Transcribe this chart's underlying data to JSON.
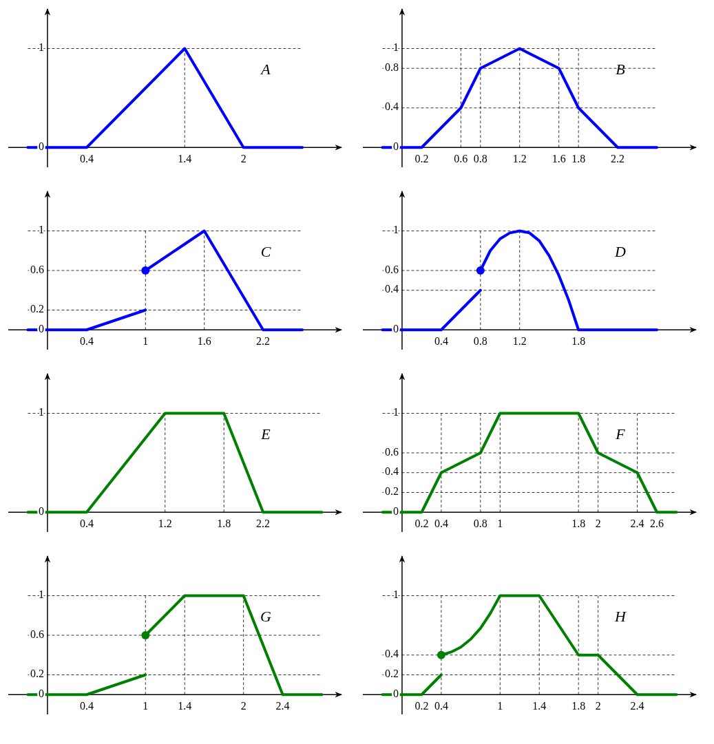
{
  "chart_data": [
    {
      "type": "line",
      "xlim": [
        -0.4,
        3.0
      ],
      "ylim": [
        -0.2,
        1.4
      ],
      "xticks": [
        0.4,
        1.4,
        2
      ],
      "yticks": [
        0,
        1
      ],
      "series": [
        {
          "color": "#0000ff",
          "x": [
            -0.2,
            0.4,
            1.4,
            2,
            2.6
          ],
          "values": [
            0,
            0,
            1,
            0,
            0
          ]
        }
      ],
      "ref_lines": [
        {
          "axis": "y",
          "value": 1,
          "line_style": "dashed"
        },
        {
          "axis": "x",
          "value": 1.4,
          "line_style": "dashed"
        }
      ],
      "annotations": [
        "A"
      ]
    },
    {
      "type": "line",
      "xlim": [
        -0.4,
        3.0
      ],
      "ylim": [
        -0.2,
        1.4
      ],
      "xticks": [
        0.2,
        0.6,
        0.8,
        1.2,
        1.6,
        1.8,
        2.2
      ],
      "yticks": [
        0,
        0.4,
        0.8,
        1
      ],
      "series": [
        {
          "color": "#0000ff",
          "x": [
            -0.2,
            0.2,
            0.6,
            0.8,
            1.2,
            1.6,
            1.8,
            2.2,
            2.6
          ],
          "values": [
            0,
            0,
            0.4,
            0.8,
            1,
            0.8,
            0.4,
            0,
            0
          ]
        }
      ],
      "ref_lines": [
        {
          "axis": "y",
          "value": 0.4,
          "line_style": "dashed"
        },
        {
          "axis": "y",
          "value": 0.8,
          "line_style": "dashed"
        },
        {
          "axis": "y",
          "value": 1,
          "line_style": "dashed"
        },
        {
          "axis": "x",
          "value": 0.6,
          "line_style": "dashed"
        },
        {
          "axis": "x",
          "value": 0.8,
          "line_style": "dashed"
        },
        {
          "axis": "x",
          "value": 1.2,
          "line_style": "dashed"
        },
        {
          "axis": "x",
          "value": 1.6,
          "line_style": "dashed"
        },
        {
          "axis": "x",
          "value": 1.8,
          "line_style": "dashed"
        }
      ],
      "annotations": [
        "B"
      ]
    },
    {
      "type": "line",
      "xlim": [
        -0.4,
        3.0
      ],
      "ylim": [
        -0.2,
        1.4
      ],
      "xticks": [
        0.4,
        1,
        1.6,
        2.2
      ],
      "yticks": [
        0,
        0.2,
        0.6,
        1
      ],
      "series": [
        {
          "color": "#0000ff",
          "x": [
            -0.2,
            0.4,
            1
          ],
          "values": [
            0,
            0,
            0.2
          ]
        },
        {
          "color": "#0000ff",
          "x": [
            1,
            1.6,
            2.2,
            2.6
          ],
          "values": [
            0.6,
            1,
            0,
            0
          ]
        },
        {
          "type": "scatter",
          "marker": "circle",
          "color": "#0000ff",
          "x": [
            1
          ],
          "values": [
            0.6
          ]
        }
      ],
      "ref_lines": [
        {
          "axis": "y",
          "value": 0.2,
          "line_style": "dashed"
        },
        {
          "axis": "y",
          "value": 0.6,
          "line_style": "dashed"
        },
        {
          "axis": "y",
          "value": 1,
          "line_style": "dashed"
        },
        {
          "axis": "x",
          "value": 1,
          "line_style": "dashed"
        },
        {
          "axis": "x",
          "value": 1.6,
          "line_style": "dashed"
        }
      ],
      "annotations": [
        "C"
      ]
    },
    {
      "type": "line",
      "xlim": [
        -0.4,
        3.0
      ],
      "ylim": [
        -0.2,
        1.4
      ],
      "xticks": [
        0.4,
        0.8,
        1.2,
        1.8
      ],
      "yticks": [
        0,
        0.4,
        0.6,
        1
      ],
      "series": [
        {
          "color": "#0000ff",
          "x": [
            -0.2,
            0.4,
            0.8
          ],
          "values": [
            0,
            0,
            0.4
          ]
        },
        {
          "color": "#0000ff",
          "x": [
            0.8,
            0.9,
            1,
            1.1,
            1.2,
            1.3,
            1.4,
            1.5,
            1.6,
            1.7,
            1.8,
            2.6
          ],
          "values": [
            0.6,
            0.8,
            0.92,
            0.98,
            1,
            0.98,
            0.9,
            0.75,
            0.55,
            0.3,
            0,
            0
          ]
        },
        {
          "type": "scatter",
          "marker": "circle",
          "color": "#0000ff",
          "x": [
            0.8
          ],
          "values": [
            0.6
          ]
        }
      ],
      "ref_lines": [
        {
          "axis": "y",
          "value": 0.4,
          "line_style": "dashed"
        },
        {
          "axis": "y",
          "value": 0.6,
          "line_style": "dashed"
        },
        {
          "axis": "y",
          "value": 1,
          "line_style": "dashed"
        },
        {
          "axis": "x",
          "value": 0.8,
          "line_style": "dashed"
        },
        {
          "axis": "x",
          "value": 1.2,
          "line_style": "dashed"
        }
      ],
      "annotations": [
        "D"
      ]
    },
    {
      "type": "line",
      "xlim": [
        -0.4,
        3.0
      ],
      "ylim": [
        -0.2,
        1.4
      ],
      "xticks": [
        0.4,
        1.2,
        1.8,
        2.2
      ],
      "yticks": [
        0,
        1
      ],
      "series": [
        {
          "color": "#008000",
          "x": [
            -0.2,
            0.4,
            1.2,
            1.8,
            2.2,
            2.8
          ],
          "values": [
            0,
            0,
            1,
            1,
            0,
            0
          ]
        }
      ],
      "ref_lines": [
        {
          "axis": "y",
          "value": 1,
          "line_style": "dashed"
        },
        {
          "axis": "x",
          "value": 1.2,
          "line_style": "dashed"
        },
        {
          "axis": "x",
          "value": 1.8,
          "line_style": "dashed"
        }
      ],
      "annotations": [
        "E"
      ]
    },
    {
      "type": "line",
      "xlim": [
        -0.4,
        3.0
      ],
      "ylim": [
        -0.2,
        1.4
      ],
      "xticks": [
        0.2,
        0.4,
        0.8,
        1,
        1.8,
        2,
        2.4,
        2.6
      ],
      "yticks": [
        0,
        0.2,
        0.4,
        0.6,
        1
      ],
      "series": [
        {
          "color": "#008000",
          "x": [
            -0.2,
            0.2,
            0.4,
            0.8,
            1,
            1.8,
            2,
            2.4,
            2.6,
            2.8
          ],
          "values": [
            0,
            0,
            0.4,
            0.6,
            1,
            1,
            0.6,
            0.4,
            0,
            0
          ]
        }
      ],
      "ref_lines": [
        {
          "axis": "y",
          "value": 0.2,
          "line_style": "dashed"
        },
        {
          "axis": "y",
          "value": 0.4,
          "line_style": "dashed"
        },
        {
          "axis": "y",
          "value": 0.6,
          "line_style": "dashed"
        },
        {
          "axis": "y",
          "value": 1,
          "line_style": "dashed"
        },
        {
          "axis": "x",
          "value": 0.4,
          "line_style": "dashed"
        },
        {
          "axis": "x",
          "value": 0.8,
          "line_style": "dashed"
        },
        {
          "axis": "x",
          "value": 1,
          "line_style": "dashed"
        },
        {
          "axis": "x",
          "value": 1.8,
          "line_style": "dashed"
        },
        {
          "axis": "x",
          "value": 2,
          "line_style": "dashed"
        },
        {
          "axis": "x",
          "value": 2.4,
          "line_style": "dashed"
        }
      ],
      "annotations": [
        "F"
      ]
    },
    {
      "type": "line",
      "xlim": [
        -0.4,
        3.0
      ],
      "ylim": [
        -0.2,
        1.4
      ],
      "xticks": [
        0.4,
        1,
        1.4,
        2,
        2.4
      ],
      "yticks": [
        0,
        0.2,
        0.6,
        1
      ],
      "series": [
        {
          "color": "#008000",
          "x": [
            -0.2,
            0.4,
            1
          ],
          "values": [
            0,
            0,
            0.2
          ]
        },
        {
          "color": "#008000",
          "x": [
            1,
            1.4,
            2,
            2.4,
            2.8
          ],
          "values": [
            0.6,
            1,
            1,
            0,
            0
          ]
        },
        {
          "type": "scatter",
          "marker": "circle",
          "color": "#008000",
          "x": [
            1
          ],
          "values": [
            0.6
          ]
        }
      ],
      "ref_lines": [
        {
          "axis": "y",
          "value": 0.2,
          "line_style": "dashed"
        },
        {
          "axis": "y",
          "value": 0.6,
          "line_style": "dashed"
        },
        {
          "axis": "y",
          "value": 1,
          "line_style": "dashed"
        },
        {
          "axis": "x",
          "value": 1,
          "line_style": "dashed"
        },
        {
          "axis": "x",
          "value": 1.4,
          "line_style": "dashed"
        },
        {
          "axis": "x",
          "value": 2,
          "line_style": "dashed"
        }
      ],
      "annotations": [
        "G"
      ]
    },
    {
      "type": "line",
      "xlim": [
        -0.4,
        3.0
      ],
      "ylim": [
        -0.2,
        1.4
      ],
      "xticks": [
        0.2,
        0.4,
        1,
        1.4,
        1.8,
        2,
        2.4
      ],
      "yticks": [
        0,
        0.2,
        0.4,
        1
      ],
      "series": [
        {
          "color": "#008000",
          "x": [
            -0.2,
            0.2,
            0.4
          ],
          "values": [
            0,
            0,
            0.2
          ]
        },
        {
          "color": "#008000",
          "x": [
            0.4,
            0.5,
            0.6,
            0.7,
            0.8,
            0.9,
            1,
            1.4,
            1.8,
            2,
            2.4,
            2.8
          ],
          "values": [
            0.4,
            0.43,
            0.48,
            0.56,
            0.67,
            0.82,
            1,
            1,
            0.4,
            0.4,
            0,
            0
          ]
        },
        {
          "type": "scatter",
          "marker": "circle",
          "color": "#008000",
          "x": [
            0.4
          ],
          "values": [
            0.4
          ]
        }
      ],
      "ref_lines": [
        {
          "axis": "y",
          "value": 0.2,
          "line_style": "dashed"
        },
        {
          "axis": "y",
          "value": 0.4,
          "line_style": "dashed"
        },
        {
          "axis": "y",
          "value": 1,
          "line_style": "dashed"
        },
        {
          "axis": "x",
          "value": 0.4,
          "line_style": "dashed"
        },
        {
          "axis": "x",
          "value": 1,
          "line_style": "dashed"
        },
        {
          "axis": "x",
          "value": 1.4,
          "line_style": "dashed"
        },
        {
          "axis": "x",
          "value": 1.8,
          "line_style": "dashed"
        },
        {
          "axis": "x",
          "value": 2,
          "line_style": "dashed"
        }
      ],
      "annotations": [
        "H"
      ]
    }
  ]
}
